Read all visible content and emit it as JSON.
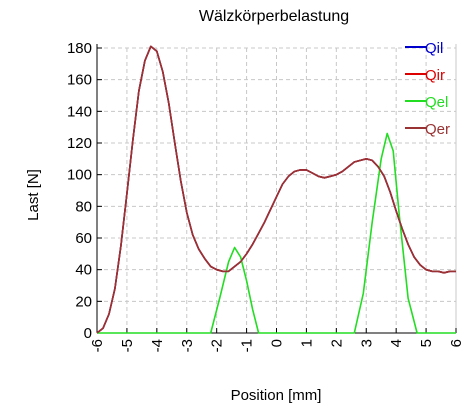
{
  "chart_data": {
    "type": "line",
    "title": "Wälzkörperbelastung",
    "xlabel": "Position [mm]",
    "ylabel": "Last [N]",
    "xlim": [
      -6,
      6
    ],
    "ylim": [
      0,
      180
    ],
    "x_ticks": [
      -6,
      -5,
      -4,
      -3,
      -2,
      -1,
      0,
      1,
      2,
      3,
      4,
      5,
      6
    ],
    "y_ticks": [
      0,
      20,
      40,
      60,
      80,
      100,
      120,
      140,
      160,
      180
    ],
    "x_tick_labels": [
      "-6",
      "-5",
      "-4",
      "-3",
      "-2",
      "-1",
      "0",
      "1",
      "2",
      "3",
      "4",
      "5",
      "6"
    ],
    "y_tick_labels": [
      "0",
      "20",
      "40",
      "60",
      "80",
      "100",
      "120",
      "140",
      "160",
      "180"
    ],
    "grid": true,
    "legend_position": "top-right",
    "series": [
      {
        "name": "Qil",
        "color": "#0000cc",
        "x": [
          -6,
          -5.8,
          -5.6,
          -5.4,
          -5.2,
          -5,
          -4.8,
          -4.6,
          -4.4,
          -4.2,
          -4,
          -3.8,
          -3.6,
          -3.4,
          -3.2,
          -3,
          -2.8,
          -2.6,
          -2.4,
          -2.2,
          -2,
          -1.8,
          -1.6,
          -1.4,
          -1.2,
          -1,
          -0.8,
          -0.6,
          -0.4,
          -0.2,
          0,
          0.2,
          0.4,
          0.6,
          0.8,
          1,
          1.2,
          1.4,
          1.6,
          1.8,
          2,
          2.2,
          2.4,
          2.6,
          2.8,
          3,
          3.2,
          3.4,
          3.6,
          3.8,
          4,
          4.2,
          4.4,
          4.6,
          4.8,
          5,
          5.2,
          5.4,
          5.6,
          5.8,
          6
        ],
        "values": [
          0,
          3,
          12,
          28,
          55,
          88,
          122,
          153,
          172,
          181,
          178,
          165,
          145,
          120,
          96,
          76,
          62,
          53,
          47,
          42,
          40,
          39,
          39,
          42,
          45,
          50,
          56,
          63,
          70,
          78,
          86,
          94,
          99,
          102,
          103,
          103,
          101,
          99,
          98,
          99,
          100,
          102,
          105,
          108,
          109,
          110,
          109,
          105,
          99,
          89,
          77,
          66,
          56,
          48,
          43,
          40,
          39,
          39,
          38,
          39,
          39
        ]
      },
      {
        "name": "Qir",
        "color": "#dd0000",
        "x": [
          -6,
          -5.8,
          -5.6,
          -5.4,
          -5.2,
          -5,
          -4.8,
          -4.6,
          -4.4,
          -4.2,
          -4,
          -3.8,
          -3.6,
          -3.4,
          -3.2,
          -3,
          -2.8,
          -2.6,
          -2.4,
          -2.2,
          -2,
          -1.8,
          -1.6,
          -1.4,
          -1.2,
          -1,
          -0.8,
          -0.6,
          -0.4,
          -0.2,
          0,
          0.2,
          0.4,
          0.6,
          0.8,
          1,
          1.2,
          1.4,
          1.6,
          1.8,
          2,
          2.2,
          2.4,
          2.6,
          2.8,
          3,
          3.2,
          3.4,
          3.6,
          3.8,
          4,
          4.2,
          4.4,
          4.6,
          4.8,
          5,
          5.2,
          5.4,
          5.6,
          5.8,
          6
        ],
        "values": [
          0,
          3,
          12,
          28,
          55,
          88,
          122,
          153,
          172,
          181,
          178,
          165,
          145,
          120,
          96,
          76,
          62,
          53,
          47,
          42,
          40,
          39,
          39,
          42,
          45,
          50,
          56,
          63,
          70,
          78,
          86,
          94,
          99,
          102,
          103,
          103,
          101,
          99,
          98,
          99,
          100,
          102,
          105,
          108,
          109,
          110,
          109,
          105,
          99,
          89,
          77,
          66,
          56,
          48,
          43,
          40,
          39,
          39,
          38,
          39,
          39
        ]
      },
      {
        "name": "Qel",
        "color": "#22dd22",
        "x": [
          -6,
          -2.2,
          -1.9,
          -1.6,
          -1.4,
          -1.2,
          -1,
          -0.8,
          -0.6,
          2.6,
          2.9,
          3.2,
          3.5,
          3.7,
          3.9,
          4.1,
          4.4,
          4.7,
          6
        ],
        "values": [
          0,
          0,
          22,
          45,
          54,
          48,
          33,
          15,
          0,
          0,
          25,
          70,
          110,
          126,
          115,
          75,
          22,
          0,
          0
        ]
      },
      {
        "name": "Qer",
        "color": "#993333",
        "x": [
          -6,
          -5.8,
          -5.6,
          -5.4,
          -5.2,
          -5,
          -4.8,
          -4.6,
          -4.4,
          -4.2,
          -4,
          -3.8,
          -3.6,
          -3.4,
          -3.2,
          -3,
          -2.8,
          -2.6,
          -2.4,
          -2.2,
          -2,
          -1.8,
          -1.6,
          -1.4,
          -1.2,
          -1,
          -0.8,
          -0.6,
          -0.4,
          -0.2,
          0,
          0.2,
          0.4,
          0.6,
          0.8,
          1,
          1.2,
          1.4,
          1.6,
          1.8,
          2,
          2.2,
          2.4,
          2.6,
          2.8,
          3,
          3.2,
          3.4,
          3.6,
          3.8,
          4,
          4.2,
          4.4,
          4.6,
          4.8,
          5,
          5.2,
          5.4,
          5.6,
          5.8,
          6
        ],
        "values": [
          0,
          3,
          12,
          28,
          55,
          88,
          122,
          153,
          172,
          181,
          178,
          165,
          145,
          120,
          96,
          76,
          62,
          53,
          47,
          42,
          40,
          39,
          39,
          42,
          45,
          50,
          56,
          63,
          70,
          78,
          86,
          94,
          99,
          102,
          103,
          103,
          101,
          99,
          98,
          99,
          100,
          102,
          105,
          108,
          109,
          110,
          109,
          105,
          99,
          89,
          77,
          66,
          56,
          48,
          43,
          40,
          39,
          39,
          38,
          39,
          39
        ]
      }
    ]
  }
}
